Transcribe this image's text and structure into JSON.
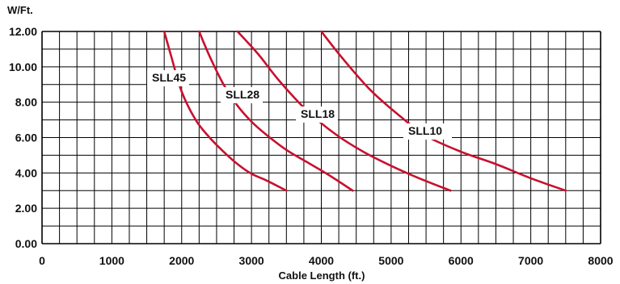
{
  "chart_data": {
    "type": "line",
    "xlabel": "Cable Length (ft.)",
    "ylabel": "W/Ft.",
    "xlim": [
      0,
      8000
    ],
    "ylim": [
      0,
      12
    ],
    "x_ticks": [
      "0",
      "1000",
      "2000",
      "3000",
      "4000",
      "5000",
      "6000",
      "7000",
      "8000"
    ],
    "y_ticks": [
      "0.00",
      "2.00",
      "4.00",
      "6.00",
      "8.00",
      "10.00",
      "12.00"
    ],
    "grid": true,
    "minor_grid": true,
    "colors": {
      "series": "#c8102e",
      "grid": "#000000"
    },
    "series": [
      {
        "name": "SLL45",
        "x": [
          1750,
          1850,
          2000,
          2200,
          2400,
          2600,
          2800,
          3000,
          3200,
          3500
        ],
        "y": [
          12.0,
          10.6,
          8.6,
          7.0,
          6.0,
          5.2,
          4.5,
          3.95,
          3.6,
          3.0
        ]
      },
      {
        "name": "SLL28",
        "x": [
          2250,
          2400,
          2600,
          2800,
          3000,
          3200,
          3500,
          3800,
          4100,
          4450
        ],
        "y": [
          12.0,
          10.6,
          9.0,
          7.8,
          6.9,
          6.2,
          5.3,
          4.6,
          3.9,
          3.0
        ]
      },
      {
        "name": "SLL18",
        "x": [
          2800,
          3100,
          3400,
          3800,
          4200,
          4600,
          5000,
          5400,
          5850
        ],
        "y": [
          12.0,
          10.7,
          9.2,
          7.5,
          6.2,
          5.2,
          4.4,
          3.7,
          3.0
        ]
      },
      {
        "name": "SLL10",
        "x": [
          4000,
          4300,
          4700,
          5100,
          5500,
          6000,
          6500,
          7000,
          7500
        ],
        "y": [
          12.0,
          10.5,
          8.7,
          7.3,
          6.1,
          5.2,
          4.5,
          3.7,
          3.0
        ]
      }
    ]
  }
}
